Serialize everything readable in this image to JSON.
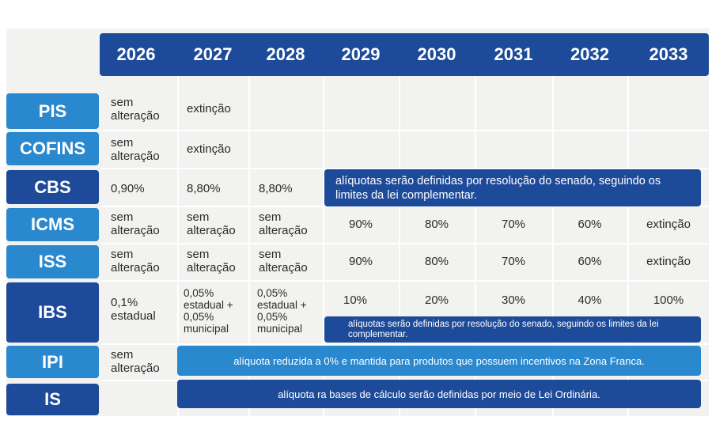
{
  "years": [
    "2026",
    "2027",
    "2028",
    "2029",
    "2030",
    "2031",
    "2032",
    "2033"
  ],
  "taxes": [
    "PIS",
    "COFINS",
    "CBS",
    "ICMS",
    "ISS",
    "IBS",
    "IPI",
    "IS"
  ],
  "cells": {
    "pis_2026": "sem alteração",
    "pis_2027": "extinção",
    "cofins_2026": "sem alteração",
    "cofins_2027": "extinção",
    "cbs_2026": "0,90%",
    "cbs_2027": "8,80%",
    "cbs_2028": "8,80%",
    "icms": [
      "sem alteração",
      "sem alteração",
      "sem alteração",
      "90%",
      "80%",
      "70%",
      "60%",
      "extinção"
    ],
    "iss": [
      "sem alteração",
      "sem alteração",
      "sem alteração",
      "90%",
      "80%",
      "70%",
      "60%",
      "extinção"
    ],
    "ibs_2026": "0,1% estadual",
    "ibs_2027": "0,05% estadual + 0,05% municipal",
    "ibs_2028": "0,05% estadual + 0,05% municipal",
    "ibs_late": [
      "10%",
      "20%",
      "30%",
      "40%",
      "100%"
    ],
    "ipi_2026": "sem alteração"
  },
  "notes": {
    "cbs": "alíquotas serão definidas por resolução do senado, seguindo os limites da lei complementar.",
    "ibs": "alíquotas serão definidas por resolução do senado, seguindo os limites da lei complementar.",
    "ipi": "alíquota reduzida a 0% e mantida para produtos que possuem incentivos na Zona Franca.",
    "is": "alíquota ra bases de cálculo serão definidas por meio de Lei Ordinária."
  },
  "colors": {
    "dark_blue": "#1e4b99",
    "light_blue": "#2a88cf",
    "background": "#f2f2f0"
  }
}
